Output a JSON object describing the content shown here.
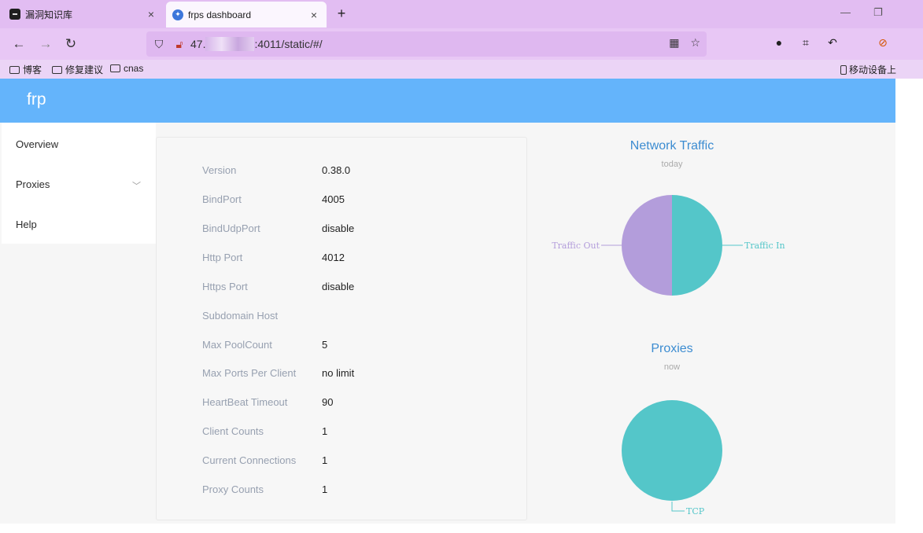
{
  "browser": {
    "tabs": [
      {
        "title": "漏洞知识库",
        "close": "×"
      },
      {
        "title": "frps dashboard",
        "close": "×"
      }
    ],
    "new_tab": "+",
    "url_prefix": "47.",
    "url_suffix": ":4011/static/#/",
    "bookmarks": [
      "博客",
      "修复建议",
      "cnas"
    ],
    "mobile_bookmark": "移动设备上"
  },
  "app": {
    "brand": "frp",
    "menu": {
      "overview": "Overview",
      "proxies": "Proxies",
      "help": "Help"
    }
  },
  "server_info": {
    "rows": [
      {
        "label": "Version",
        "value": "0.38.0"
      },
      {
        "label": "BindPort",
        "value": "4005"
      },
      {
        "label": "BindUdpPort",
        "value": "disable"
      },
      {
        "label": "Http Port",
        "value": "4012"
      },
      {
        "label": "Https Port",
        "value": "disable"
      },
      {
        "label": "Subdomain Host",
        "value": ""
      },
      {
        "label": "Max PoolCount",
        "value": "5"
      },
      {
        "label": "Max Ports Per Client",
        "value": "no limit"
      },
      {
        "label": "HeartBeat Timeout",
        "value": "90"
      },
      {
        "label": "Client Counts",
        "value": "1"
      },
      {
        "label": "Current Connections",
        "value": "1"
      },
      {
        "label": "Proxy Counts",
        "value": "1"
      }
    ]
  },
  "chart_data": [
    {
      "type": "pie",
      "title": "Network Traffic",
      "subtitle": "today",
      "slices": [
        {
          "name": "Traffic In",
          "value": 50,
          "color": "#54c6c9"
        },
        {
          "name": "Traffic Out",
          "value": 50,
          "color": "#b39ddb"
        }
      ]
    },
    {
      "type": "pie",
      "title": "Proxies",
      "subtitle": "now",
      "slices": [
        {
          "name": "TCP",
          "value": 1,
          "color": "#54c6c9"
        }
      ]
    }
  ]
}
